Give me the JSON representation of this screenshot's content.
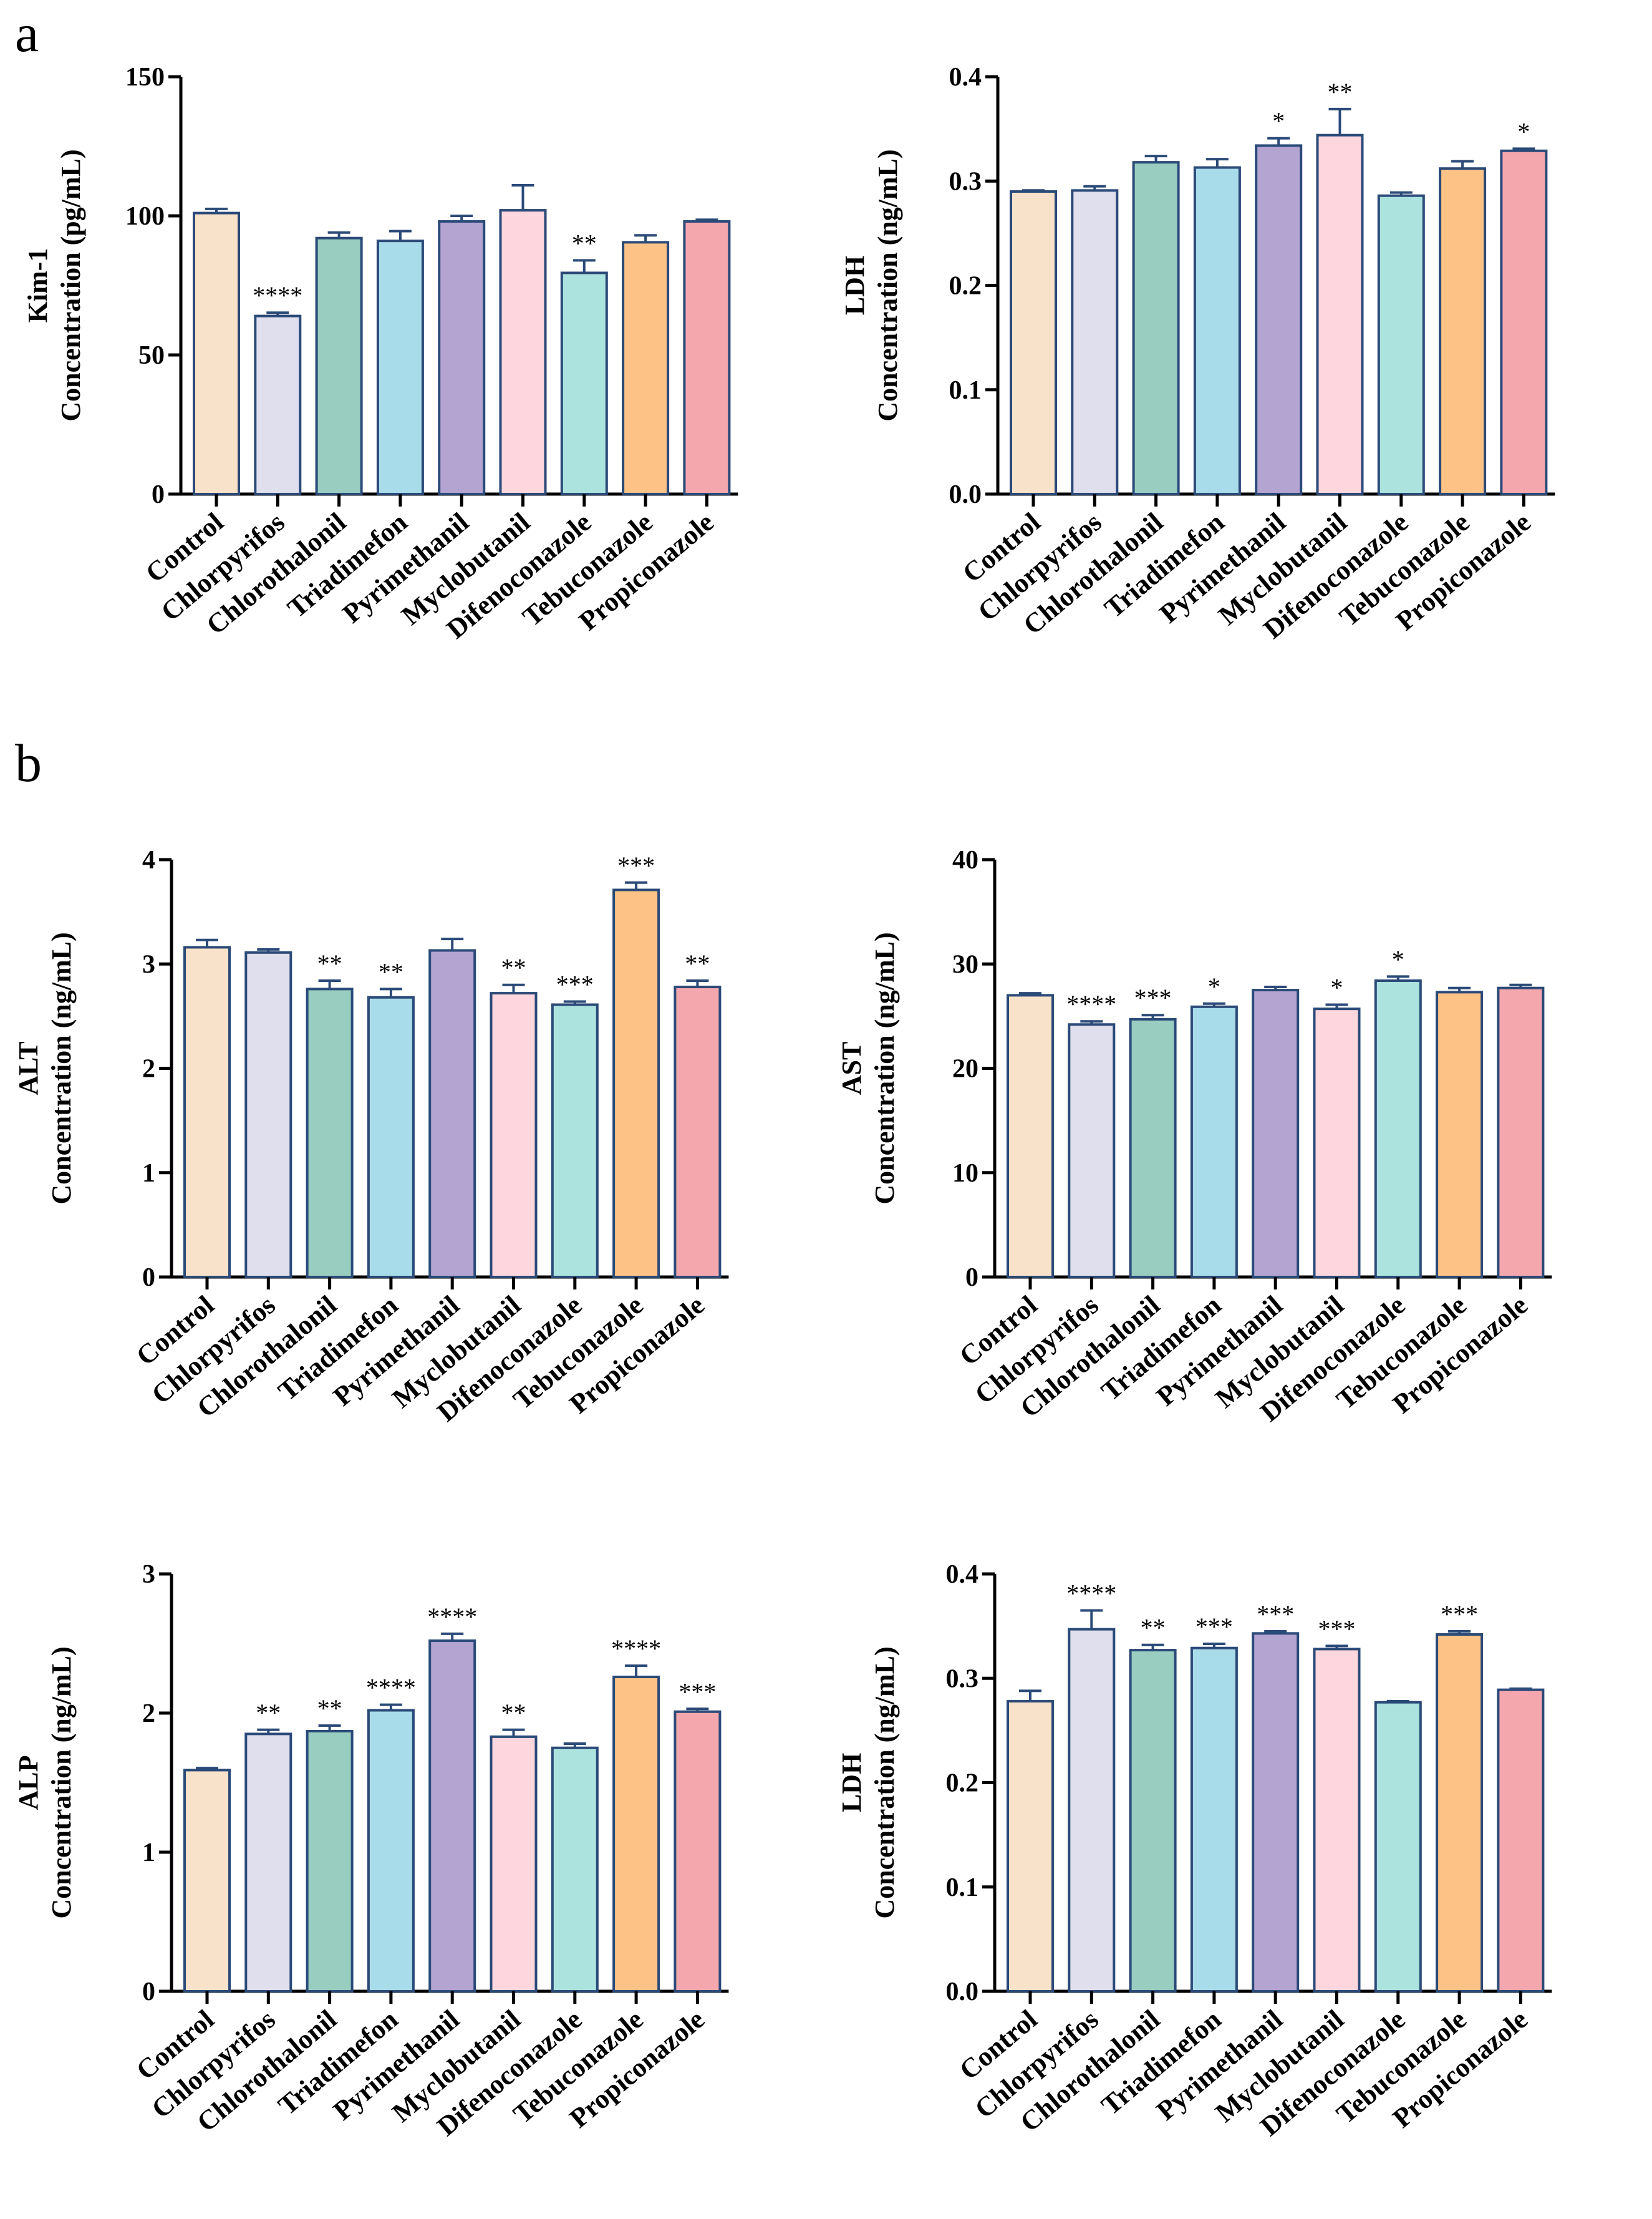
{
  "panel_labels": {
    "a": "a",
    "b": "b"
  },
  "colors": [
    "#f8e2c9",
    "#dfdfee",
    "#99cdc0",
    "#a9dcea",
    "#b4a4d2",
    "#fdd6de",
    "#ace3df",
    "#fdc286",
    "#f5a7ae"
  ],
  "outline_color": "#2b4a78",
  "chart_data": [
    {
      "id": "kim1",
      "type": "bar",
      "title": "",
      "ylabel": "Kim-1",
      "ylabel2": "Concentration (pg/mL)",
      "ylim": [
        0,
        150
      ],
      "yticks": [
        0,
        50,
        100,
        150
      ],
      "ytick_labels": [
        "0",
        "50",
        "100",
        "150"
      ],
      "categories": [
        "Control",
        "Chlorpyrifos",
        "Chlorothalonil",
        "Triadimefon",
        "Pyrimethanil",
        "Myclobutanil",
        "Difenoconazole",
        "Tebuconazole",
        "Propiconazole"
      ],
      "values": [
        101,
        64,
        92,
        91,
        98,
        102,
        79.5,
        90.5,
        98
      ],
      "errors": [
        1.5,
        1.2,
        2,
        3.5,
        2,
        9,
        4.5,
        2.5,
        0.6
      ],
      "significance": [
        "",
        "****",
        "",
        "",
        "",
        "",
        "**",
        "",
        ""
      ]
    },
    {
      "id": "ldh-a",
      "type": "bar",
      "title": "",
      "ylabel": "LDH",
      "ylabel2": "Concentration (ng/mL)",
      "ylim": [
        0,
        0.4
      ],
      "yticks": [
        0,
        0.1,
        0.2,
        0.3,
        0.4
      ],
      "ytick_labels": [
        "0.0",
        "0.1",
        "0.2",
        "0.3",
        "0.4"
      ],
      "categories": [
        "Control",
        "Chlorpyrifos",
        "Chlorothalonil",
        "Triadimefon",
        "Pyrimethanil",
        "Myclobutanil",
        "Difenoconazole",
        "Tebuconazole",
        "Propiconazole"
      ],
      "values": [
        0.29,
        0.291,
        0.318,
        0.313,
        0.334,
        0.344,
        0.286,
        0.312,
        0.329
      ],
      "errors": [
        0.001,
        0.004,
        0.006,
        0.008,
        0.007,
        0.025,
        0.003,
        0.007,
        0.002
      ],
      "significance": [
        "",
        "",
        "",
        "",
        "*",
        "**",
        "",
        "",
        "*"
      ]
    },
    {
      "id": "alt",
      "type": "bar",
      "title": "",
      "ylabel": "ALT",
      "ylabel2": "Concentration (ng/mL)",
      "ylim": [
        0,
        4
      ],
      "yticks": [
        0,
        1,
        2,
        3,
        4
      ],
      "ytick_labels": [
        "0",
        "1",
        "2",
        "3",
        "4"
      ],
      "categories": [
        "Control",
        "Chlorpyrifos",
        "Chlorothalonil",
        "Triadimefon",
        "Pyrimethanil",
        "Myclobutanil",
        "Difenoconazole",
        "Tebuconazole",
        "Propiconazole"
      ],
      "values": [
        3.16,
        3.11,
        2.76,
        2.68,
        3.13,
        2.72,
        2.61,
        3.71,
        2.78
      ],
      "errors": [
        0.07,
        0.03,
        0.08,
        0.08,
        0.11,
        0.08,
        0.03,
        0.07,
        0.06
      ],
      "significance": [
        "",
        "",
        "**",
        "**",
        "",
        "**",
        "***",
        "***",
        "**"
      ]
    },
    {
      "id": "ast",
      "type": "bar",
      "title": "",
      "ylabel": "AST",
      "ylabel2": "Concentration (ng/mL)",
      "ylim": [
        0,
        40
      ],
      "yticks": [
        0,
        10,
        20,
        30,
        40
      ],
      "ytick_labels": [
        "0",
        "10",
        "20",
        "30",
        "40"
      ],
      "categories": [
        "Control",
        "Chlorpyrifos",
        "Chlorothalonil",
        "Triadimefon",
        "Pyrimethanil",
        "Myclobutanil",
        "Difenoconazole",
        "Tebuconazole",
        "Propiconazole"
      ],
      "values": [
        27,
        24.2,
        24.7,
        25.9,
        27.5,
        25.7,
        28.4,
        27.3,
        27.7
      ],
      "errors": [
        0.2,
        0.3,
        0.4,
        0.3,
        0.3,
        0.4,
        0.4,
        0.4,
        0.3
      ],
      "significance": [
        "",
        "****",
        "***",
        "*",
        "",
        "*",
        "*",
        "",
        ""
      ]
    },
    {
      "id": "alp",
      "type": "bar",
      "title": "",
      "ylabel": "ALP",
      "ylabel2": "Concentration (ng/mL)",
      "ylim": [
        0,
        3
      ],
      "yticks": [
        0,
        1,
        2,
        3
      ],
      "ytick_labels": [
        "0",
        "1",
        "2",
        "3"
      ],
      "categories": [
        "Control",
        "Chlorpyrifos",
        "Chlorothalonil",
        "Triadimefon",
        "Pyrimethanil",
        "Myclobutanil",
        "Difenoconazole",
        "Tebuconazole",
        "Propiconazole"
      ],
      "values": [
        1.59,
        1.85,
        1.87,
        2.02,
        2.52,
        1.83,
        1.75,
        2.26,
        2.01
      ],
      "errors": [
        0.015,
        0.03,
        0.04,
        0.04,
        0.05,
        0.05,
        0.03,
        0.08,
        0.02
      ],
      "significance": [
        "",
        "**",
        "**",
        "****",
        "****",
        "**",
        "",
        "****",
        "***"
      ]
    },
    {
      "id": "ldh-b",
      "type": "bar",
      "title": "",
      "ylabel": "LDH",
      "ylabel2": "Concentration (ng/mL)",
      "ylim": [
        0,
        0.4
      ],
      "yticks": [
        0,
        0.1,
        0.2,
        0.3,
        0.4
      ],
      "ytick_labels": [
        "0.0",
        "0.1",
        "0.2",
        "0.3",
        "0.4"
      ],
      "categories": [
        "Control",
        "Chlorpyrifos",
        "Chlorothalonil",
        "Triadimefon",
        "Pyrimethanil",
        "Myclobutanil",
        "Difenoconazole",
        "Tebuconazole",
        "Propiconazole"
      ],
      "values": [
        0.278,
        0.347,
        0.327,
        0.329,
        0.343,
        0.328,
        0.277,
        0.342,
        0.289
      ],
      "errors": [
        0.01,
        0.018,
        0.005,
        0.004,
        0.002,
        0.003,
        0.001,
        0.003,
        0.001
      ],
      "significance": [
        "",
        "****",
        "**",
        "***",
        "***",
        "***",
        "",
        "***",
        ""
      ]
    }
  ]
}
